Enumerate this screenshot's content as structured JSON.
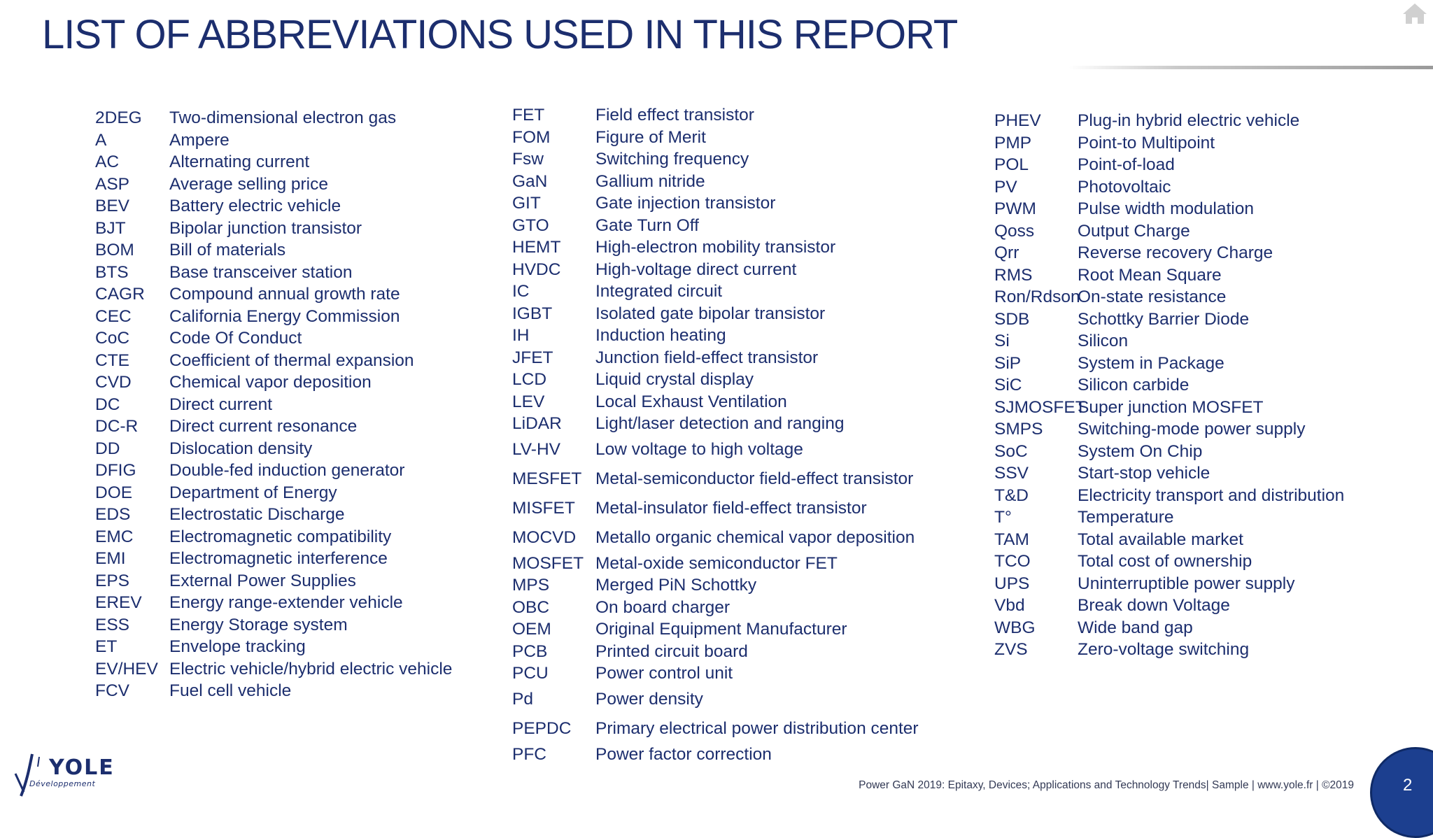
{
  "title": "LIST OF ABBREVIATIONS USED IN THIS REPORT",
  "columns": [
    [
      {
        "abbr": "2DEG",
        "def": "Two-dimensional electron gas"
      },
      {
        "abbr": "A",
        "def": "Ampere"
      },
      {
        "abbr": "AC",
        "def": "Alternating current"
      },
      {
        "abbr": "ASP",
        "def": "Average selling price"
      },
      {
        "abbr": "BEV",
        "def": "Battery electric vehicle"
      },
      {
        "abbr": "BJT",
        "def": "Bipolar junction transistor"
      },
      {
        "abbr": "BOM",
        "def": "Bill of materials"
      },
      {
        "abbr": "BTS",
        "def": "Base transceiver station"
      },
      {
        "abbr": "CAGR",
        "def": "Compound annual growth rate"
      },
      {
        "abbr": "CEC",
        "def": "California Energy Commission"
      },
      {
        "abbr": "CoC",
        "def": "Code Of Conduct"
      },
      {
        "abbr": "CTE",
        "def": "Coefficient of thermal expansion"
      },
      {
        "abbr": "CVD",
        "def": "Chemical vapor deposition"
      },
      {
        "abbr": "DC",
        "def": "Direct current"
      },
      {
        "abbr": "DC-R",
        "def": "Direct current resonance"
      },
      {
        "abbr": "DD",
        "def": "Dislocation density"
      },
      {
        "abbr": "DFIG",
        "def": "Double-fed induction generator"
      },
      {
        "abbr": "DOE",
        "def": "Department of Energy"
      },
      {
        "abbr": "EDS",
        "def": "Electrostatic Discharge"
      },
      {
        "abbr": "EMC",
        "def": "Electromagnetic compatibility"
      },
      {
        "abbr": "EMI",
        "def": "Electromagnetic interference"
      },
      {
        "abbr": "EPS",
        "def": "External Power Supplies"
      },
      {
        "abbr": "EREV",
        "def": "Energy range-extender vehicle"
      },
      {
        "abbr": "ESS",
        "def": "Energy Storage system"
      },
      {
        "abbr": "ET",
        "def": "Envelope tracking"
      },
      {
        "abbr": "EV/HEV",
        "def": "Electric vehicle/hybrid electric vehicle"
      },
      {
        "abbr": "FCV",
        "def": "Fuel cell vehicle"
      }
    ],
    [
      {
        "abbr": "FET",
        "def": "Field effect transistor"
      },
      {
        "abbr": "FOM",
        "def": "Figure of Merit"
      },
      {
        "abbr": "Fsw",
        "def": "Switching frequency"
      },
      {
        "abbr": "GaN",
        "def": "Gallium nitride"
      },
      {
        "abbr": "GIT",
        "def": "Gate injection transistor"
      },
      {
        "abbr": "GTO",
        "def": "Gate Turn Off"
      },
      {
        "abbr": "HEMT",
        "def": "High-electron mobility transistor"
      },
      {
        "abbr": "HVDC",
        "def": "High-voltage direct current"
      },
      {
        "abbr": "IC",
        "def": "Integrated circuit"
      },
      {
        "abbr": "IGBT",
        "def": "Isolated gate bipolar transistor"
      },
      {
        "abbr": "IH",
        "def": "Induction heating"
      },
      {
        "abbr": "JFET",
        "def": "Junction field-effect transistor"
      },
      {
        "abbr": "LCD",
        "def": "Liquid crystal display"
      },
      {
        "abbr": "LEV",
        "def": "Local Exhaust Ventilation"
      },
      {
        "abbr": "LiDAR",
        "def": "Light/laser detection and ranging"
      },
      {
        "abbr": "LV-HV",
        "def": "Low voltage to high voltage",
        "gap": true
      },
      {
        "abbr": "MESFET",
        "def": "Metal-semiconductor field-effect transistor",
        "gap": true
      },
      {
        "abbr": "MISFET",
        "def": "Metal-insulator field-effect transistor",
        "gap": true
      },
      {
        "abbr": "MOCVD",
        "def": "Metallo organic chemical vapor deposition",
        "gap": true
      },
      {
        "abbr": "MOSFET",
        "def": "Metal-oxide semiconductor FET"
      },
      {
        "abbr": "MPS",
        "def": "Merged PiN Schottky"
      },
      {
        "abbr": "OBC",
        "def": "On board charger"
      },
      {
        "abbr": "OEM",
        "def": "Original Equipment Manufacturer"
      },
      {
        "abbr": "PCB",
        "def": "Printed circuit board"
      },
      {
        "abbr": "PCU",
        "def": "Power control unit"
      },
      {
        "abbr": "Pd",
        "def": "Power density",
        "gap": true
      },
      {
        "abbr": "PEPDC",
        "def": "Primary electrical power distribution center",
        "gap": true
      },
      {
        "abbr": "PFC",
        "def": "Power factor correction"
      }
    ],
    [
      {
        "abbr": "PHEV",
        "def": "Plug-in hybrid electric vehicle"
      },
      {
        "abbr": "PMP",
        "def": "Point-to Multipoint"
      },
      {
        "abbr": "POL",
        "def": "Point-of-load"
      },
      {
        "abbr": "PV",
        "def": "Photovoltaic"
      },
      {
        "abbr": "PWM",
        "def": "Pulse width modulation"
      },
      {
        "abbr": "Qoss",
        "def": "Output Charge"
      },
      {
        "abbr": "Qrr",
        "def": "Reverse recovery Charge"
      },
      {
        "abbr": "RMS",
        "def": "Root Mean Square"
      },
      {
        "abbr": "Ron/Rdson",
        "def": "On-state resistance"
      },
      {
        "abbr": "SDB",
        "def": "Schottky Barrier Diode"
      },
      {
        "abbr": "Si",
        "def": "Silicon"
      },
      {
        "abbr": "SiP",
        "def": "System in Package"
      },
      {
        "abbr": "SiC",
        "def": "Silicon carbide"
      },
      {
        "abbr": "SJMOSFET",
        "def": "Super junction MOSFET"
      },
      {
        "abbr": "SMPS",
        "def": "Switching-mode power supply"
      },
      {
        "abbr": "SoC",
        "def": "System On Chip"
      },
      {
        "abbr": "SSV",
        "def": "Start-stop vehicle"
      },
      {
        "abbr": "T&D",
        "def": "Electricity transport and distribution"
      },
      {
        "abbr": "T°",
        "def": "Temperature"
      },
      {
        "abbr": "TAM",
        "def": "Total available market"
      },
      {
        "abbr": "TCO",
        "def": "Total cost of ownership"
      },
      {
        "abbr": "UPS",
        "def": "Uninterruptible power supply"
      },
      {
        "abbr": "Vbd",
        "def": "Break down Voltage"
      },
      {
        "abbr": "WBG",
        "def": "Wide band gap"
      },
      {
        "abbr": "ZVS",
        "def": "Zero-voltage switching"
      }
    ]
  ],
  "logo": {
    "name": "YOLE",
    "sub": "Développement"
  },
  "footer": "Power GaN 2019: Epitaxy, Devices; Applications and Technology Trends| Sample | www.yole.fr | ©2019",
  "page_number": "2",
  "colors": {
    "text": "#1c2e6e",
    "page_circle": "#1c3f8f"
  },
  "icons": {
    "home": "home-icon"
  }
}
